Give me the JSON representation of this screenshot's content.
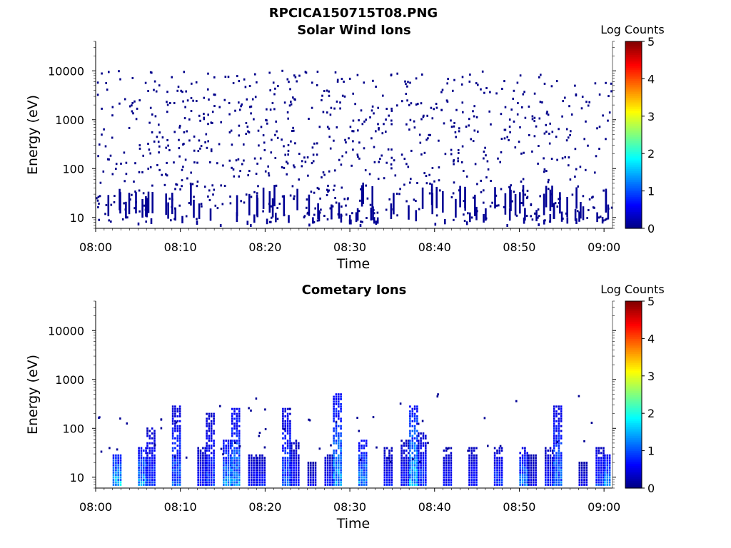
{
  "figure": {
    "title": "RPCICA150715T08.PNG"
  },
  "chart_data": [
    {
      "type": "heatmap",
      "title": "Solar Wind Ions",
      "xlabel": "Time",
      "ylabel": "Energy (eV)",
      "x_ticks": [
        "08:00",
        "08:10",
        "08:20",
        "08:30",
        "08:40",
        "08:50",
        "09:00"
      ],
      "y_ticks": [
        "10",
        "100",
        "1000",
        "10000"
      ],
      "xlim": [
        "08:00",
        "09:01"
      ],
      "ylim": [
        6,
        40000
      ],
      "y_scale": "log",
      "grid": false,
      "colorbar": {
        "label": "Log Counts",
        "ticks": [
          "0",
          "1",
          "2",
          "3",
          "4",
          "5"
        ],
        "range": [
          0,
          5
        ],
        "colormap": "jet"
      },
      "description_of_data": "sparse single-count (log counts ~0) pixels scattered at all times from ~8 eV to ~30000 eV, with denser short vertical streaks at low energy (<40 eV)"
    },
    {
      "type": "heatmap",
      "title": "Cometary Ions",
      "xlabel": "Time",
      "ylabel": "Energy (eV)",
      "x_ticks": [
        "08:00",
        "08:10",
        "08:20",
        "08:30",
        "08:40",
        "08:50",
        "09:00"
      ],
      "y_ticks": [
        "10",
        "100",
        "1000",
        "10000"
      ],
      "xlim": [
        "08:00",
        "09:01"
      ],
      "ylim": [
        6,
        40000
      ],
      "y_scale": "log",
      "grid": false,
      "colorbar": {
        "label": "Log Counts",
        "ticks": [
          "0",
          "1",
          "2",
          "3",
          "4",
          "5"
        ],
        "range": [
          0,
          5
        ],
        "colormap": "jet"
      },
      "bursts": [
        {
          "t": "08:02",
          "emax": 30,
          "peak": 1.8
        },
        {
          "t": "08:05",
          "emax": 40,
          "peak": 1.6
        },
        {
          "t": "08:06",
          "emax": 100,
          "peak": 1.0
        },
        {
          "t": "08:09",
          "emax": 300,
          "peak": 1.2
        },
        {
          "t": "08:12",
          "emax": 40,
          "peak": 0.8
        },
        {
          "t": "08:13",
          "emax": 200,
          "peak": 1.0
        },
        {
          "t": "08:15",
          "emax": 60,
          "peak": 1.6
        },
        {
          "t": "08:16",
          "emax": 250,
          "peak": 1.5
        },
        {
          "t": "08:18",
          "emax": 30,
          "peak": 0.8
        },
        {
          "t": "08:19",
          "emax": 30,
          "peak": 0.8
        },
        {
          "t": "08:22",
          "emax": 250,
          "peak": 1.2
        },
        {
          "t": "08:23",
          "emax": 60,
          "peak": 0.8
        },
        {
          "t": "08:25",
          "emax": 20,
          "peak": 0.6
        },
        {
          "t": "08:27",
          "emax": 30,
          "peak": 0.8
        },
        {
          "t": "08:28",
          "emax": 500,
          "peak": 1.6
        },
        {
          "t": "08:31",
          "emax": 60,
          "peak": 1.5
        },
        {
          "t": "08:34",
          "emax": 40,
          "peak": 0.8
        },
        {
          "t": "08:36",
          "emax": 60,
          "peak": 0.8
        },
        {
          "t": "08:37",
          "emax": 300,
          "peak": 1.8
        },
        {
          "t": "08:38",
          "emax": 80,
          "peak": 1.0
        },
        {
          "t": "08:41",
          "emax": 40,
          "peak": 0.8
        },
        {
          "t": "08:44",
          "emax": 40,
          "peak": 0.8
        },
        {
          "t": "08:47",
          "emax": 40,
          "peak": 1.0
        },
        {
          "t": "08:50",
          "emax": 40,
          "peak": 1.4
        },
        {
          "t": "08:51",
          "emax": 30,
          "peak": 0.6
        },
        {
          "t": "08:53",
          "emax": 40,
          "peak": 0.8
        },
        {
          "t": "08:54",
          "emax": 300,
          "peak": 1.3
        },
        {
          "t": "08:57",
          "emax": 20,
          "peak": 0.6
        },
        {
          "t": "08:59",
          "emax": 40,
          "peak": 1.0
        },
        {
          "t": "09:00",
          "emax": 30,
          "peak": 1.6
        }
      ]
    }
  ]
}
